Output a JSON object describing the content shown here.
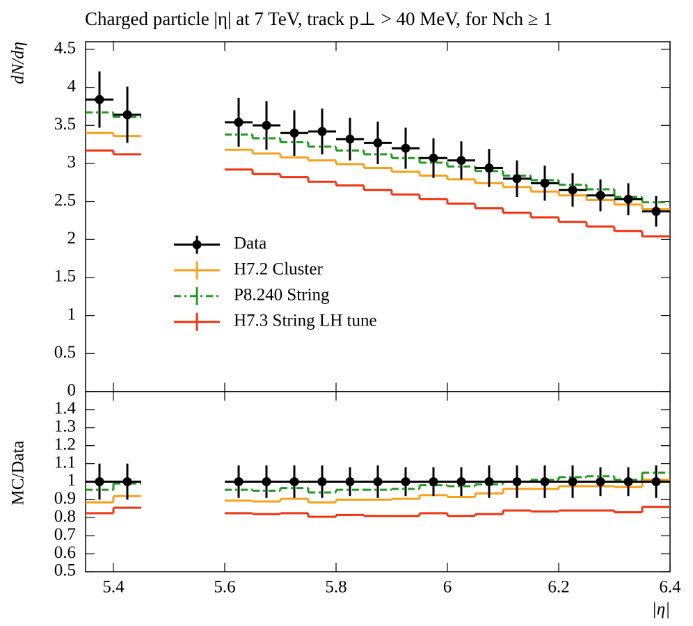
{
  "chart_data": [
    {
      "type": "line",
      "title": "Charged particle |η| at 7 TeV, track p⊥ > 40 MeV, for Nch ≥ 1",
      "ylabel": "dN/dη",
      "x": [
        5.375,
        5.425,
        5.625,
        5.675,
        5.725,
        5.775,
        5.825,
        5.875,
        5.925,
        5.975,
        6.025,
        6.075,
        6.125,
        6.175,
        6.225,
        6.275,
        6.325,
        6.375
      ],
      "xlim": [
        5.35,
        6.4
      ],
      "ylim": [
        0,
        4.6
      ],
      "yticks": [
        0,
        0.5,
        1,
        1.5,
        2,
        2.5,
        3,
        3.5,
        4,
        4.5
      ],
      "legend": "center left",
      "series": [
        {
          "name": "Data",
          "color": "#000000",
          "style": "points",
          "values": [
            3.84,
            3.64,
            3.54,
            3.5,
            3.4,
            3.42,
            3.32,
            3.27,
            3.2,
            3.07,
            3.04,
            2.94,
            2.8,
            2.74,
            2.65,
            2.58,
            2.53,
            2.37
          ],
          "errors": [
            0.37,
            0.37,
            0.32,
            0.32,
            0.3,
            0.3,
            0.28,
            0.28,
            0.27,
            0.26,
            0.25,
            0.25,
            0.24,
            0.23,
            0.22,
            0.21,
            0.21,
            0.2
          ]
        },
        {
          "name": "H7.2 Cluster",
          "color": "#f7a11a",
          "style": "solid",
          "values": [
            3.4,
            3.36,
            3.18,
            3.13,
            3.08,
            3.04,
            2.99,
            2.94,
            2.89,
            2.84,
            2.79,
            2.74,
            2.69,
            2.63,
            2.58,
            2.52,
            2.46,
            2.4
          ]
        },
        {
          "name": "P8.240 String",
          "color": "#1f9a1f",
          "style": "dashdot",
          "values": [
            3.67,
            3.61,
            3.38,
            3.33,
            3.28,
            3.22,
            3.17,
            3.12,
            3.07,
            3.01,
            2.96,
            2.9,
            2.84,
            2.78,
            2.72,
            2.66,
            2.56,
            2.49
          ]
        },
        {
          "name": "H7.3 String LH tune",
          "color": "#ee3311",
          "style": "solid",
          "values": [
            3.17,
            3.12,
            2.92,
            2.86,
            2.82,
            2.76,
            2.71,
            2.65,
            2.59,
            2.53,
            2.47,
            2.41,
            2.35,
            2.29,
            2.23,
            2.17,
            2.11,
            2.04
          ]
        }
      ]
    },
    {
      "type": "line",
      "ylabel": "MC/Data",
      "xlabel": "|η|",
      "x": [
        5.375,
        5.425,
        5.625,
        5.675,
        5.725,
        5.775,
        5.825,
        5.875,
        5.925,
        5.975,
        6.025,
        6.075,
        6.125,
        6.175,
        6.225,
        6.275,
        6.325,
        6.375
      ],
      "xlim": [
        5.35,
        6.4
      ],
      "xticks": [
        5.4,
        5.6,
        5.8,
        6,
        6.2,
        6.4
      ],
      "ylim": [
        0.5,
        1.5
      ],
      "yticks": [
        0.5,
        0.6,
        0.7,
        0.8,
        0.9,
        1,
        1.1,
        1.2,
        1.3,
        1.4
      ],
      "series": [
        {
          "color": "#000000",
          "style": "points",
          "values": [
            1,
            1,
            1,
            1,
            1,
            1,
            1,
            1,
            1,
            1,
            1,
            1,
            1,
            1,
            1,
            1,
            1,
            1
          ],
          "errors": [
            0.1,
            0.1,
            0.09,
            0.09,
            0.09,
            0.09,
            0.08,
            0.09,
            0.08,
            0.08,
            0.08,
            0.09,
            0.09,
            0.09,
            0.09,
            0.08,
            0.08,
            0.09
          ]
        },
        {
          "color": "#f7a11a",
          "style": "solid",
          "values": [
            0.885,
            0.92,
            0.895,
            0.89,
            0.905,
            0.885,
            0.9,
            0.9,
            0.905,
            0.925,
            0.915,
            0.935,
            0.96,
            0.96,
            0.975,
            0.975,
            0.97,
            1.01
          ]
        },
        {
          "color": "#1f9a1f",
          "style": "dashdot",
          "values": [
            0.955,
            0.99,
            0.955,
            0.95,
            0.965,
            0.94,
            0.955,
            0.955,
            0.96,
            0.98,
            0.975,
            0.985,
            1.0,
            1.01,
            1.025,
            1.03,
            1.01,
            1.05
          ]
        },
        {
          "color": "#ee3311",
          "style": "solid",
          "values": [
            0.825,
            0.855,
            0.825,
            0.82,
            0.825,
            0.805,
            0.815,
            0.81,
            0.81,
            0.825,
            0.81,
            0.82,
            0.84,
            0.835,
            0.84,
            0.84,
            0.83,
            0.86
          ]
        }
      ]
    }
  ]
}
